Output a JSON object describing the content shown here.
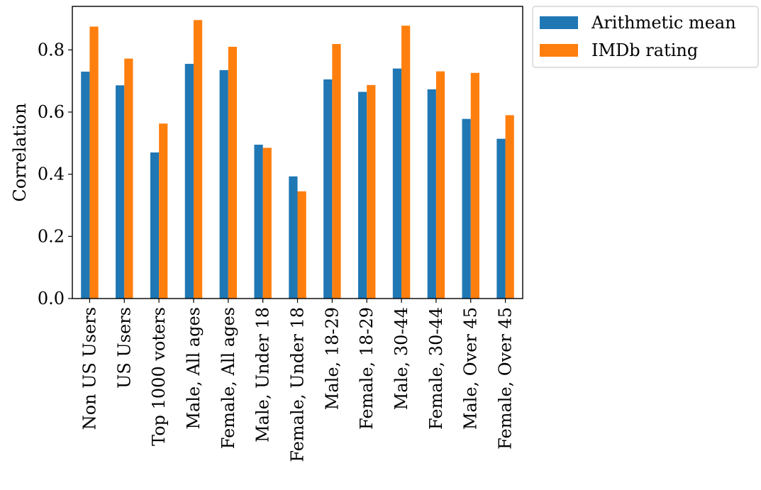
{
  "chart_data": {
    "type": "bar",
    "title": "",
    "xlabel": "",
    "ylabel": "Correlation",
    "ylim": [
      0,
      0.94
    ],
    "yticks": [
      "0.0",
      "0.2",
      "0.4",
      "0.6",
      "0.8"
    ],
    "categories": [
      "Non US Users",
      "US Users",
      "Top 1000 voters",
      "Male, All ages",
      "Female, All ages",
      "Male,  Under 18",
      "Female,  Under 18",
      "Male,  18-29",
      "Female,  18-29",
      "Male,  30-44",
      "Female,  30-44",
      "Male, Over 45",
      "Female, Over 45"
    ],
    "series": [
      {
        "name": "Arithmetic mean",
        "color": "#1f77b4",
        "values": [
          0.73,
          0.686,
          0.47,
          0.755,
          0.735,
          0.495,
          0.393,
          0.705,
          0.665,
          0.74,
          0.673,
          0.578,
          0.514
        ]
      },
      {
        "name": "IMDb rating",
        "color": "#ff7f0e",
        "values": [
          0.875,
          0.772,
          0.563,
          0.896,
          0.81,
          0.485,
          0.345,
          0.819,
          0.687,
          0.878,
          0.731,
          0.726,
          0.59
        ]
      }
    ],
    "grid": false,
    "legend_position": "outside top-right"
  }
}
